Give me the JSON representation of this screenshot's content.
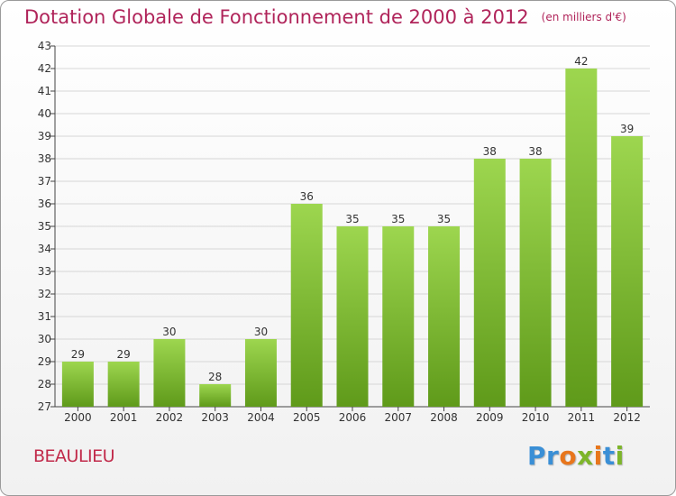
{
  "title": "Dotation Globale de Fonctionnement de 2000 à 2012",
  "unit": "(en milliers d'€)",
  "commune": "BEAULIEU",
  "logo": {
    "letters": [
      "P",
      "r",
      "o",
      "x",
      "i",
      "t",
      "i"
    ],
    "colors": [
      "#3a8fd6",
      "#3a8fd6",
      "#e8761c",
      "#7db52a",
      "#e8761c",
      "#3a8fd6",
      "#7db52a"
    ]
  },
  "colors": {
    "title": "#b0245a",
    "bar_top": "#9dd64f",
    "bar_bottom": "#5f9a1a",
    "grid": "#d6d6d6"
  },
  "chart_data": {
    "type": "bar",
    "categories": [
      "2000",
      "2001",
      "2002",
      "2003",
      "2004",
      "2005",
      "2006",
      "2007",
      "2008",
      "2009",
      "2010",
      "2011",
      "2012"
    ],
    "values": [
      29,
      29,
      30,
      28,
      30,
      36,
      35,
      35,
      35,
      38,
      38,
      42,
      39
    ],
    "ylim": [
      27,
      43
    ],
    "yticks": [
      27,
      28,
      29,
      30,
      31,
      32,
      33,
      34,
      35,
      36,
      37,
      38,
      39,
      40,
      41,
      42,
      43
    ],
    "grid": true,
    "data_labels": true
  }
}
